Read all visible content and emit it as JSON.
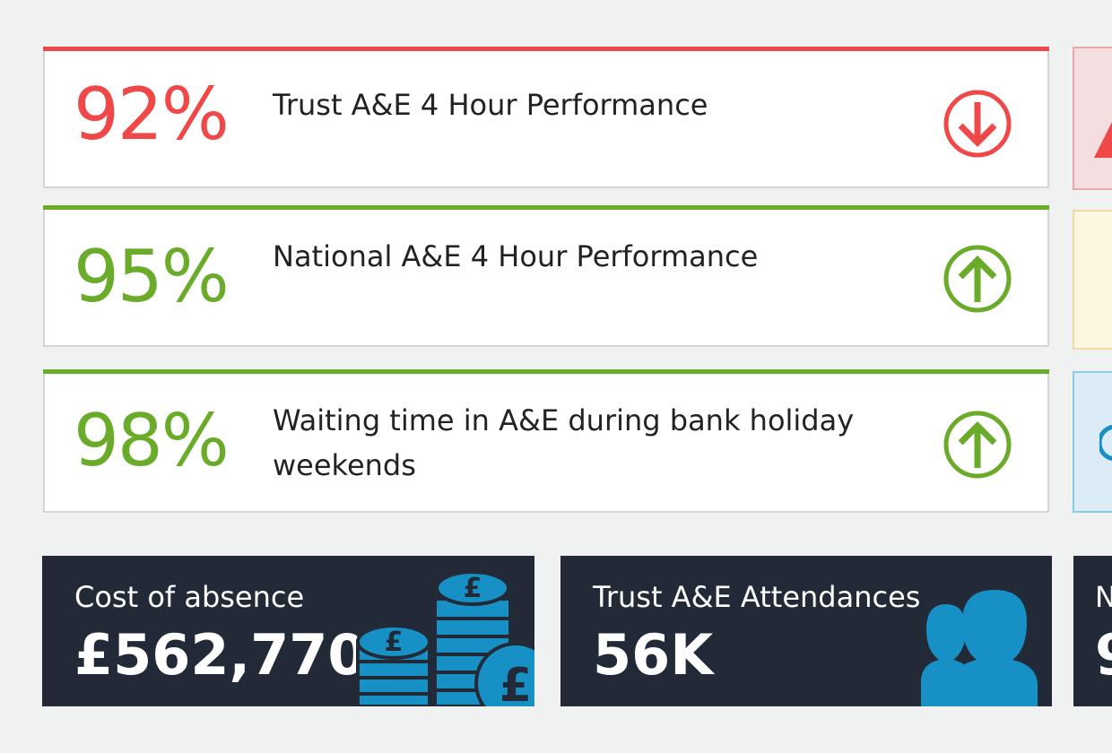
{
  "colors": {
    "red": "#f04848",
    "green": "#6aab2a",
    "tile_bg": "#222a37",
    "tile_icon": "#1790c6",
    "side_red_bg": "#f5dedf",
    "side_red_border": "#e9a8ac",
    "side_yellow_bg": "#fdf6e1",
    "side_yellow_border": "#f0d8a0",
    "side_blue_bg": "#dcecf6",
    "side_blue_border": "#8ccbe3"
  },
  "kpis": [
    {
      "value": "92%",
      "label": "Trust A&E 4 Hour Performance",
      "trend": "down",
      "color": "red",
      "icon": "arrow-down-circle-icon"
    },
    {
      "value": "95%",
      "label": "National A&E 4 Hour Performance",
      "trend": "up",
      "color": "green",
      "icon": "arrow-up-circle-icon"
    },
    {
      "value": "98%",
      "label": "Waiting time in A&E during bank holiday weekends",
      "trend": "up",
      "color": "green",
      "icon": "arrow-up-circle-icon"
    }
  ],
  "tiles": [
    {
      "title": "Cost of absence",
      "value": "£562,770",
      "icon": "coins-icon"
    },
    {
      "title": "Trust A&E Attendances",
      "value": "56K",
      "icon": "people-icon"
    },
    {
      "title": "N",
      "value": "9",
      "icon": ""
    }
  ]
}
